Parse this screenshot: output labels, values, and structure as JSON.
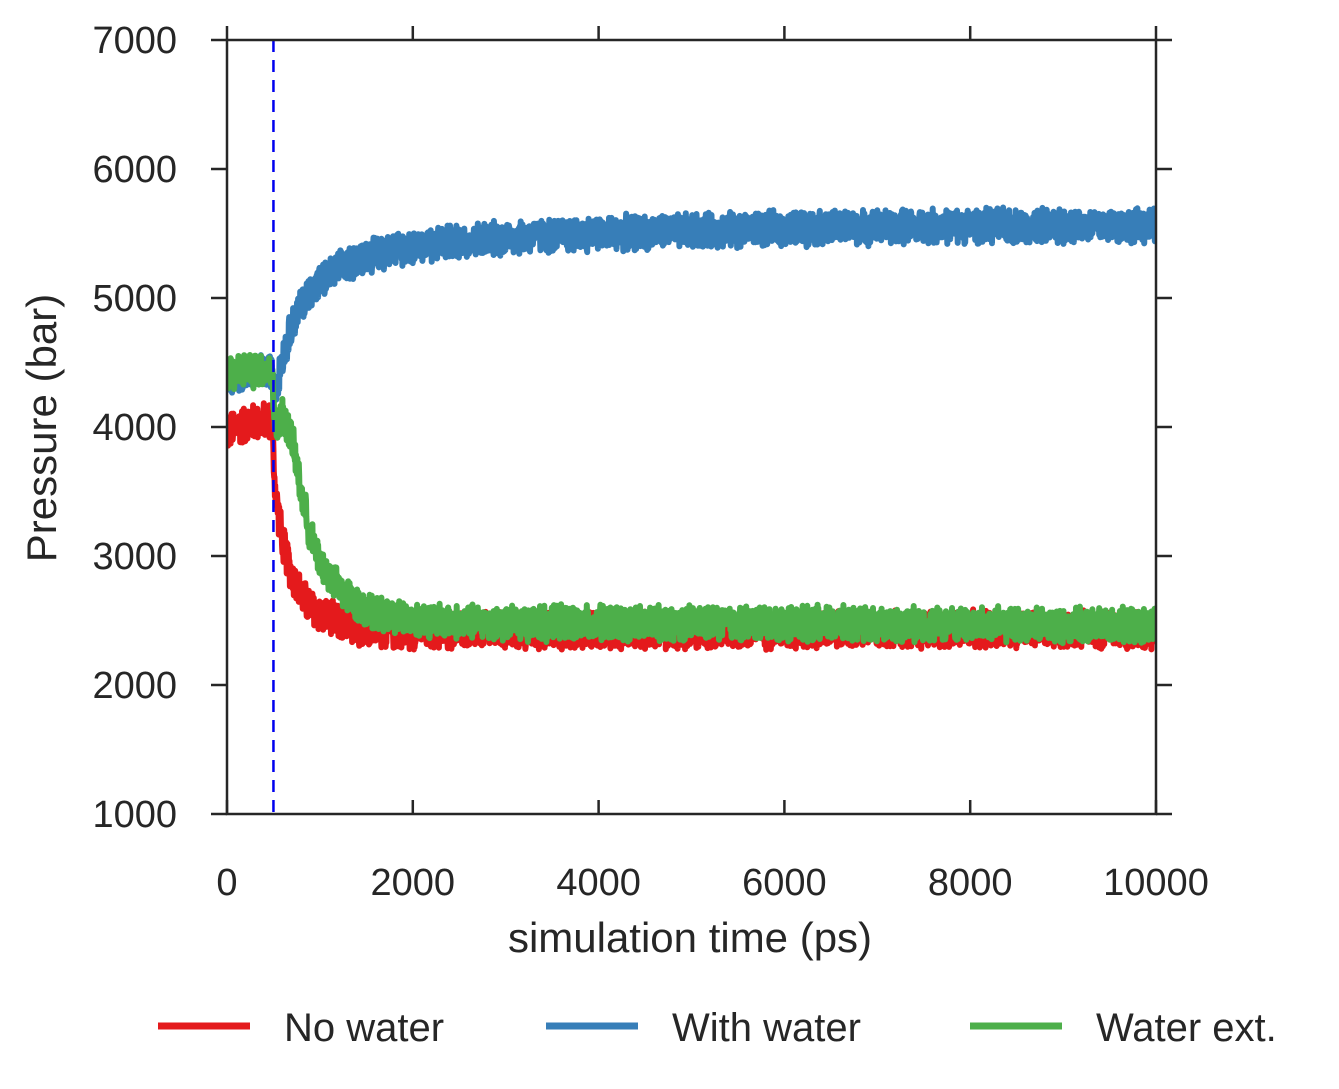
{
  "chart_data": {
    "type": "line",
    "xlabel": "simulation time (ps)",
    "ylabel": "Pressure (bar)",
    "xlim": [
      0,
      10000
    ],
    "ylim": [
      1000,
      7000
    ],
    "xticks": [
      "0",
      "2000",
      "4000",
      "6000",
      "8000",
      "10000"
    ],
    "yticks": [
      "1000",
      "2000",
      "3000",
      "4000",
      "5000",
      "6000",
      "7000"
    ],
    "grid": false,
    "legend_position": "bottom",
    "vline": {
      "x": 500,
      "style": "dashed",
      "color": "#0000ee"
    },
    "series": [
      {
        "name": "No water",
        "color": "#e41a1c",
        "x": [
          0,
          100,
          200,
          300,
          400,
          480,
          520,
          600,
          700,
          800,
          900,
          1000,
          1200,
          1400,
          1600,
          1800,
          2000,
          2500,
          3000,
          4000,
          5000,
          6000,
          7000,
          8000,
          9000,
          10000
        ],
        "y": [
          3950,
          4000,
          4020,
          4040,
          4050,
          4050,
          3500,
          3100,
          2850,
          2700,
          2600,
          2550,
          2480,
          2450,
          2430,
          2420,
          2420,
          2420,
          2420,
          2420,
          2420,
          2420,
          2430,
          2430,
          2430,
          2430
        ],
        "noise": 160
      },
      {
        "name": "With water",
        "color": "#377eb8",
        "x": [
          0,
          100,
          200,
          300,
          400,
          480,
          520,
          600,
          700,
          800,
          900,
          1000,
          1200,
          1400,
          1600,
          1800,
          2000,
          2500,
          3000,
          4000,
          5000,
          6000,
          7000,
          8000,
          9000,
          10000
        ],
        "y": [
          4350,
          4400,
          4420,
          4420,
          4430,
          4430,
          4300,
          4550,
          4800,
          4950,
          5050,
          5120,
          5220,
          5300,
          5350,
          5380,
          5400,
          5440,
          5470,
          5500,
          5520,
          5540,
          5550,
          5560,
          5560,
          5560
        ],
        "noise": 150
      },
      {
        "name": "Water ext.",
        "color": "#4daf4a",
        "x": [
          0,
          100,
          200,
          300,
          400,
          480,
          520,
          600,
          700,
          800,
          900,
          1000,
          1200,
          1400,
          1600,
          1800,
          2000,
          2500,
          3000,
          4000,
          5000,
          6000,
          7000,
          8000,
          9000,
          10000
        ],
        "y": [
          4400,
          4430,
          4440,
          4440,
          4440,
          4440,
          4000,
          4100,
          3900,
          3500,
          3150,
          2950,
          2750,
          2620,
          2560,
          2530,
          2510,
          2490,
          2480,
          2480,
          2480,
          2480,
          2470,
          2470,
          2460,
          2460
        ],
        "noise": 150
      }
    ]
  }
}
